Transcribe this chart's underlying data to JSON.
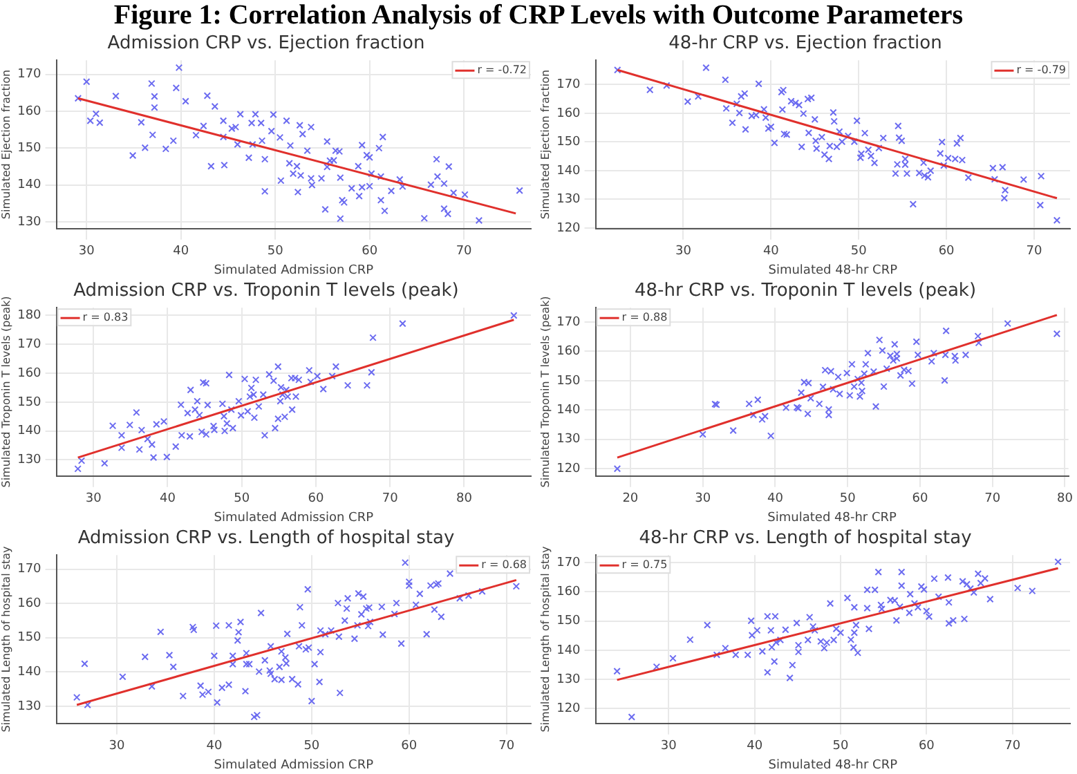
{
  "chart_data": [
    {
      "type": "scatter",
      "title": "Admission CRP vs. Ejection fraction",
      "xlabel": "Simulated Admission CRP",
      "ylabel": "Simulated Ejection fraction",
      "annotations": [
        "Figure 1: Correlation Analysis of CRP Levels with Outcome Parameters"
      ],
      "xlim": [
        26.8,
        77.1
      ],
      "ylim": [
        128.2,
        173.8
      ],
      "xticks": [
        30,
        40,
        50,
        60,
        70
      ],
      "yticks": [
        130,
        140,
        150,
        160,
        170
      ],
      "grid": true,
      "legend": "top right",
      "series": [
        {
          "type": "scatter",
          "marker": "cross",
          "color": "#6b6bf0",
          "x": [
            29.1,
            30,
            30.4,
            31,
            31.4,
            33.1,
            34.9,
            35.8,
            36.2,
            36.9,
            37,
            37.2,
            37.2,
            38.4,
            39.2,
            39.5,
            39.8,
            40.5,
            41.6,
            42.4,
            42.8,
            43.2,
            43.6,
            44.6,
            44.5,
            44.5,
            45.4,
            45.8,
            46,
            46.3,
            47.2,
            47.5,
            47.6,
            47.9,
            48.5,
            48.6,
            48.9,
            48.9,
            49.6,
            49.8,
            50.5,
            50.6,
            51.2,
            51.6,
            51.5,
            51.9,
            52.3,
            52.4,
            52.6,
            52.7,
            52.9,
            53.4,
            53.8,
            53.8,
            53.9,
            54.9,
            55.3,
            55.5,
            55.5,
            55.8,
            56.2,
            56.4,
            56.8,
            56.9,
            56.9,
            57.1,
            57.3,
            58.1,
            58.8,
            58.9,
            59.2,
            59.2,
            59.7,
            60,
            60,
            60.2,
            61,
            61.2,
            61.2,
            61.4,
            61.6,
            62.3,
            63.2,
            63.5,
            65.8,
            66.5,
            67.1,
            67.2,
            67.9,
            67.9,
            68.3,
            68.4,
            68.9,
            70.1,
            71.6,
            75.9
          ],
          "values": [
            163.5,
            168,
            157.4,
            159.3,
            156.9,
            164.1,
            148,
            157,
            150.1,
            167.5,
            153.6,
            164,
            161,
            149.8,
            152,
            166.3,
            171.8,
            162.7,
            153.5,
            156,
            164.2,
            145.1,
            161.3,
            145.4,
            157.4,
            153,
            155.3,
            155.7,
            151,
            159.2,
            147.4,
            156.8,
            151,
            159.2,
            156.8,
            152,
            147,
            138.3,
            154.6,
            159.1,
            152.9,
            141.2,
            157.4,
            150.7,
            145.9,
            143.1,
            145.1,
            138.1,
            156.2,
            142.6,
            153.8,
            149.3,
            155.7,
            141.8,
            140,
            141.8,
            133.4,
            151.8,
            144.9,
            146.6,
            146.7,
            149.3,
            149.1,
            142,
            130.9,
            135.9,
            135.3,
            139.1,
            145.1,
            137,
            150.8,
            139.4,
            148.1,
            147.5,
            139.7,
            143.1,
            150,
            142.3,
            135.9,
            153,
            133,
            138.4,
            141.5,
            139.6,
            131,
            140.1,
            147,
            142.3,
            133.6,
            140.4,
            132.2,
            145,
            137.9,
            137.4,
            130.4,
            138.5
          ]
        },
        {
          "type": "line",
          "name": "r = -0.72",
          "color": "#e0302c",
          "x": [
            29.1,
            75.5
          ],
          "values": [
            163.5,
            132.3
          ]
        }
      ]
    },
    {
      "type": "scatter",
      "title": "48-hr CRP vs. Ejection fraction",
      "xlabel": "Simulated 48-hr CRP",
      "ylabel": "Simulated Ejection fraction",
      "xlim": [
        20,
        74.1
      ],
      "ylim": [
        119.8,
        178.5
      ],
      "xticks": [
        30,
        40,
        50,
        60,
        70
      ],
      "yticks": [
        120,
        130,
        140,
        150,
        160,
        170
      ],
      "grid": true,
      "legend": "top right",
      "series": [
        {
          "type": "scatter",
          "marker": "cross",
          "color": "#6b6bf0",
          "x": [
            22.5,
            26.2,
            28.1,
            30.5,
            31.7,
            32.6,
            34.8,
            34.9,
            35.6,
            36.1,
            36.4,
            36.6,
            37,
            37.1,
            37.8,
            38.3,
            38.6,
            39.2,
            39.4,
            39.7,
            40,
            40.4,
            41.3,
            41.2,
            41.4,
            41.5,
            41.8,
            42.3,
            42.8,
            43.2,
            43.5,
            43.7,
            44.2,
            44.3,
            44.6,
            45,
            45.1,
            45.2,
            45.8,
            46.1,
            46.6,
            46.7,
            47.1,
            47.2,
            47.5,
            47.8,
            48.1,
            48.8,
            49.5,
            49.8,
            50.2,
            50.3,
            50.7,
            51.1,
            51.4,
            51.8,
            52.3,
            52.8,
            54.2,
            54.4,
            54.5,
            54.6,
            54.9,
            55.3,
            55.3,
            55.5,
            56.2,
            56.9,
            57.4,
            57.5,
            57.9,
            58.2,
            59.3,
            59.5,
            59.7,
            60.2,
            61,
            61.2,
            61.6,
            61.8,
            62.5,
            65.3,
            65.5,
            66.4,
            66.6,
            66.7,
            68.8,
            70.7,
            70.8,
            72.6
          ],
          "values": [
            175.1,
            168.2,
            169.7,
            164.1,
            165.9,
            175.9,
            171.7,
            161.7,
            156.7,
            163.3,
            160.1,
            165.9,
            166.9,
            154.4,
            159.1,
            159.4,
            170.3,
            161.4,
            158.5,
            154.7,
            155.3,
            149.7,
            161.3,
            167.4,
            168.1,
            152.8,
            152.6,
            164.2,
            163.6,
            162.9,
            148.3,
            159.9,
            165,
            153.2,
            165.4,
            157.9,
            150.4,
            147.7,
            151.7,
            145.6,
            144.1,
            148.6,
            160.3,
            157.2,
            148.3,
            153.6,
            150.1,
            152.1,
            150.1,
            157.4,
            144.5,
            145.9,
            153.1,
            147.3,
            145.1,
            142.7,
            147.9,
            151.4,
            139,
            142.2,
            155.6,
            151.5,
            150.4,
            144.1,
            142.1,
            139,
            128.3,
            139.2,
            142.8,
            138.3,
            137.7,
            140,
            146,
            150,
            141.8,
            144.4,
            144.1,
            149.5,
            151.4,
            143.7,
            137.6,
            140.9,
            137,
            141.2,
            130.4,
            133.2,
            136.9,
            128,
            138.1,
            122.7
          ]
        },
        {
          "type": "line",
          "name": "r = -0.79",
          "color": "#e0302c",
          "x": [
            22.5,
            72.6
          ],
          "values": [
            175.1,
            130.4
          ]
        }
      ]
    },
    {
      "type": "scatter",
      "title": "Admission CRP vs. Troponin T levels (peak)",
      "xlabel": "Simulated Admission CRP",
      "ylabel": "Simulated Troponin T levels (peak)",
      "xlim": [
        25,
        89
      ],
      "ylim": [
        124.4,
        182.7
      ],
      "xticks": [
        30,
        40,
        50,
        60,
        70,
        80
      ],
      "yticks": [
        130,
        140,
        150,
        160,
        170,
        180
      ],
      "grid": true,
      "legend": "top left",
      "series": [
        {
          "type": "scatter",
          "marker": "cross",
          "color": "#6b6bf0",
          "x": [
            27.9,
            28.4,
            31.5,
            32.6,
            33.8,
            33.8,
            34.9,
            35.8,
            36.2,
            36.5,
            37.3,
            37.9,
            38.1,
            38.5,
            39.5,
            39.9,
            41.1,
            41.8,
            41.9,
            42.7,
            43,
            43.1,
            43.7,
            44,
            44.3,
            44.6,
            44.8,
            45.2,
            45.2,
            45.4,
            46.2,
            46.3,
            47.4,
            47.6,
            47.7,
            48,
            48.3,
            48.6,
            48.8,
            49.6,
            49.9,
            50.4,
            50.8,
            51.1,
            51.3,
            51.6,
            51.7,
            51.9,
            52.3,
            52.9,
            53.1,
            53.7,
            54.3,
            54.5,
            54.9,
            54.9,
            55.2,
            55.3,
            55.5,
            55.8,
            56,
            56.2,
            56.7,
            56.8,
            57.2,
            57.3,
            57.7,
            59.1,
            59.3,
            60.2,
            61,
            62.2,
            62.7,
            64.3,
            66.9,
            67.5,
            67.7,
            71.7,
            86.7
          ],
          "values": [
            126.9,
            129.7,
            128.8,
            141.8,
            138.5,
            134.2,
            142.1,
            146.4,
            133.6,
            140.3,
            137.2,
            135.3,
            130.8,
            142.3,
            143.3,
            131,
            134.6,
            149.1,
            138.5,
            146.2,
            138.1,
            154.2,
            147.4,
            150.3,
            145.5,
            139.7,
            156.8,
            138.8,
            156.5,
            149,
            141.7,
            140.4,
            149.4,
            145.1,
            140,
            142.6,
            159.4,
            147.4,
            141,
            150.3,
            145.4,
            158,
            146.8,
            151.9,
            154.9,
            152.6,
            144.6,
            157.7,
            148.5,
            152.6,
            138.5,
            159.6,
            157.4,
            141,
            162.3,
            144.2,
            150.3,
            155.1,
            152.6,
            144.9,
            154.2,
            151.9,
            158.3,
            147.4,
            158.3,
            151.9,
            157.7,
            161,
            157,
            159,
            154.5,
            159,
            162.3,
            155.8,
            155.8,
            160.3,
            172.3,
            177.2,
            180
          ]
        },
        {
          "type": "line",
          "name": "r = 0.83",
          "color": "#e0302c",
          "x": [
            27.9,
            86.7
          ],
          "values": [
            130.8,
            178.5
          ]
        }
      ]
    },
    {
      "type": "scatter",
      "title": "48-hr CRP vs. Troponin T levels (peak)",
      "xlabel": "Simulated 48-hr CRP",
      "ylabel": "Simulated Troponin T levels (peak)",
      "xlim": [
        15.2,
        80.5
      ],
      "ylim": [
        117.5,
        174.9
      ],
      "xticks": [
        20,
        30,
        40,
        50,
        60,
        70,
        80
      ],
      "yticks": [
        120,
        130,
        140,
        150,
        160,
        170
      ],
      "grid": true,
      "legend": "top left",
      "series": [
        {
          "type": "scatter",
          "marker": "cross",
          "color": "#6b6bf0",
          "x": [
            18.2,
            30,
            31.7,
            31.9,
            34.2,
            36.4,
            37,
            37.6,
            38.2,
            38.6,
            39.4,
            41.5,
            43,
            43.2,
            43.6,
            44,
            44.5,
            44.6,
            44.9,
            46.1,
            46.6,
            46.9,
            47.4,
            47.4,
            47.7,
            48,
            48.7,
            48.9,
            49.9,
            50.3,
            50.6,
            50.9,
            51.4,
            51.7,
            51.9,
            52,
            52.3,
            52.5,
            52.8,
            53.6,
            53.9,
            54.4,
            54.8,
            55,
            55.4,
            55.9,
            56.3,
            56.5,
            56.8,
            56.8,
            57.3,
            57.8,
            58.4,
            58.9,
            59.5,
            59.7,
            61.6,
            61.9,
            63.4,
            63.5,
            63.6,
            64.8,
            64.9,
            66.3,
            68,
            68.1,
            72.1,
            78.9
          ],
          "values": [
            120,
            131.7,
            142,
            141.8,
            133,
            142.1,
            138.3,
            143.5,
            136.8,
            137.9,
            131.2,
            140.8,
            140.9,
            140.6,
            145.9,
            149.5,
            138.7,
            149.2,
            144,
            142.1,
            147.9,
            153.6,
            140.2,
            138.3,
            153.2,
            147.1,
            151.3,
            145.5,
            152.6,
            145,
            155.6,
            148,
            150.6,
            144.6,
            149.3,
            146.5,
            152.4,
            155.6,
            159.4,
            153.1,
            141.2,
            163.9,
            160.3,
            148,
            154.1,
            158.5,
            156.9,
            162.4,
            159.1,
            157.6,
            151.8,
            153.7,
            153.3,
            149,
            163.3,
            158.8,
            156.6,
            159.4,
            150.1,
            158.8,
            167,
            158.4,
            156.9,
            158.8,
            165.2,
            162.9,
            169.5,
            166
          ]
        },
        {
          "type": "line",
          "name": "r = 0.88",
          "color": "#e0302c",
          "x": [
            18.2,
            78.9
          ],
          "values": [
            123.8,
            172.4
          ]
        }
      ]
    },
    {
      "type": "scatter",
      "title": "Admission CRP vs. Length of hospital stay",
      "xlabel": "Simulated Admission CRP",
      "ylabel": "Simulated Length of hospital stay",
      "xlim": [
        23.8,
        72.5
      ],
      "ylim": [
        125,
        174.1
      ],
      "xticks": [
        30,
        40,
        50,
        60,
        70
      ],
      "yticks": [
        130,
        140,
        150,
        160,
        170
      ],
      "grid": true,
      "legend": "top right",
      "series": [
        {
          "type": "scatter",
          "marker": "cross",
          "color": "#6b6bf0",
          "x": [
            25.9,
            26.7,
            27,
            30.6,
            32.9,
            33.6,
            34.5,
            35.4,
            35.8,
            36.8,
            37.8,
            37.9,
            38.6,
            38.8,
            39.4,
            40,
            40.2,
            40.3,
            40.8,
            41.5,
            41.5,
            41.9,
            41.9,
            42.4,
            42.5,
            42.7,
            43.2,
            43.3,
            43.3,
            43.6,
            44.1,
            44.4,
            44.6,
            44.8,
            45.2,
            45.7,
            45.8,
            45.8,
            46.2,
            46.7,
            46.9,
            46.9,
            47.3,
            47.4,
            47.5,
            48,
            48.6,
            48.7,
            48.8,
            49,
            49.4,
            49.6,
            49.7,
            50,
            50.3,
            50.8,
            50.9,
            50.9,
            51.4,
            52,
            52.7,
            52.8,
            52.9,
            53.4,
            53.6,
            53.7,
            54.4,
            54.7,
            54.8,
            55.1,
            55.3,
            55.6,
            55.8,
            55.9,
            56,
            57.2,
            57.3,
            58.5,
            58.7,
            59.2,
            59.6,
            60,
            60,
            60.7,
            61.1,
            61.8,
            62.2,
            62.6,
            62.8,
            63,
            63.3,
            64.2,
            65.2,
            66.1,
            67.5,
            71
          ],
          "values": [
            132.6,
            142.4,
            130.4,
            138.6,
            144.4,
            135.8,
            151.7,
            144.9,
            141.5,
            133,
            153.1,
            152.3,
            136,
            133.4,
            134.2,
            144.7,
            153.5,
            131.1,
            135.4,
            153.6,
            136.3,
            144.7,
            142.3,
            149.2,
            151.6,
            154.6,
            134.4,
            145.5,
            142.3,
            142.3,
            126.9,
            127.4,
            140.1,
            157.2,
            143.4,
            140.4,
            139.5,
            147.5,
            137.9,
            141.5,
            137.7,
            146,
            144.2,
            142.5,
            151.1,
            137.9,
            136.4,
            147.5,
            158.9,
            153.6,
            146.6,
            164.1,
            147.1,
            131.5,
            142.3,
            137.1,
            152.1,
            145.8,
            151,
            152.1,
            160.1,
            150.3,
            133.9,
            155,
            158.5,
            161.5,
            149.7,
            153.6,
            162.9,
            156.8,
            162,
            158.5,
            153.4,
            158.8,
            154.6,
            159,
            150.9,
            156.9,
            160.1,
            148.3,
            171.9,
            165.2,
            166.3,
            159.6,
            162.8,
            151,
            165.2,
            158.2,
            165.5,
            165.8,
            156.1,
            168.7,
            161.5,
            162.3,
            163.5,
            165
          ]
        },
        {
          "type": "line",
          "name": "r = 0.68",
          "color": "#e0302c",
          "x": [
            25.9,
            71
          ],
          "values": [
            130.4,
            166.8
          ]
        }
      ]
    },
    {
      "type": "scatter",
      "title": "48-hr CRP vs. Length of hospital stay",
      "xlabel": "Simulated 48-hr CRP",
      "ylabel": "Simulated Length of hospital stay",
      "xlim": [
        21.5,
        76.7
      ],
      "ylim": [
        114.9,
        172.6
      ],
      "xticks": [
        30,
        40,
        50,
        60,
        70
      ],
      "yticks": [
        120,
        130,
        140,
        150,
        160,
        170
      ],
      "grid": true,
      "legend": "top left",
      "series": [
        {
          "type": "scatter",
          "marker": "cross",
          "color": "#6b6bf0",
          "x": [
            24,
            25.7,
            28.6,
            30.5,
            32.5,
            34.5,
            35.6,
            36.6,
            37.8,
            39.2,
            39.6,
            39.7,
            40.3,
            40.9,
            41.5,
            41.5,
            41.9,
            42,
            42.3,
            42.4,
            42.5,
            43,
            43.6,
            44.4,
            44.1,
            44.9,
            45.1,
            45.1,
            46.2,
            46.4,
            46.8,
            47,
            47.7,
            48.1,
            48.4,
            48.8,
            49.2,
            49.5,
            50,
            50.8,
            51.2,
            51.5,
            51.6,
            51.6,
            51.8,
            52,
            53.1,
            53.1,
            53.3,
            54,
            54.4,
            54.7,
            54.8,
            55.8,
            56.3,
            56.5,
            56.9,
            57.1,
            57.1,
            58,
            58.1,
            58.6,
            59,
            59.4,
            59.7,
            60,
            60.3,
            60.9,
            61.4,
            62.5,
            62.6,
            62.6,
            63.1,
            64.4,
            64.2,
            64.7,
            65.1,
            65.5,
            66,
            66.3,
            66.8,
            67.4,
            70.6,
            72.3,
            75.3
          ],
          "values": [
            132.8,
            117.1,
            134.3,
            137.2,
            143.6,
            148.6,
            138.4,
            140.7,
            138.4,
            138.4,
            150.1,
            145.1,
            146.8,
            139.6,
            132.4,
            151.6,
            146.8,
            141,
            136.1,
            151.6,
            142.7,
            143.5,
            147,
            134.9,
            130.5,
            149.3,
            139.4,
            141.7,
            143.5,
            151.3,
            148.1,
            146.8,
            143,
            140.7,
            142.6,
            156,
            143.5,
            147.3,
            146,
            157.9,
            143.6,
            140.9,
            146,
            154.7,
            148.6,
            139.1,
            160.7,
            154.4,
            147.3,
            160.7,
            166.8,
            155.5,
            154.1,
            157.2,
            157,
            150.2,
            154.9,
            162.1,
            166.8,
            152.8,
            159.2,
            156,
            154.7,
            161.8,
            160.8,
            153.4,
            151.5,
            164.5,
            158.3,
            164.9,
            156.4,
            149.2,
            150.2,
            150.7,
            163.6,
            162.6,
            161.1,
            159.8,
            166.2,
            163,
            164.6,
            157.5,
            161.3,
            160.3,
            170.3
          ]
        },
        {
          "type": "line",
          "name": "r = 0.75",
          "color": "#e0302c",
          "x": [
            24,
            75.3
          ],
          "values": [
            129.8,
            168.1
          ]
        }
      ]
    }
  ]
}
